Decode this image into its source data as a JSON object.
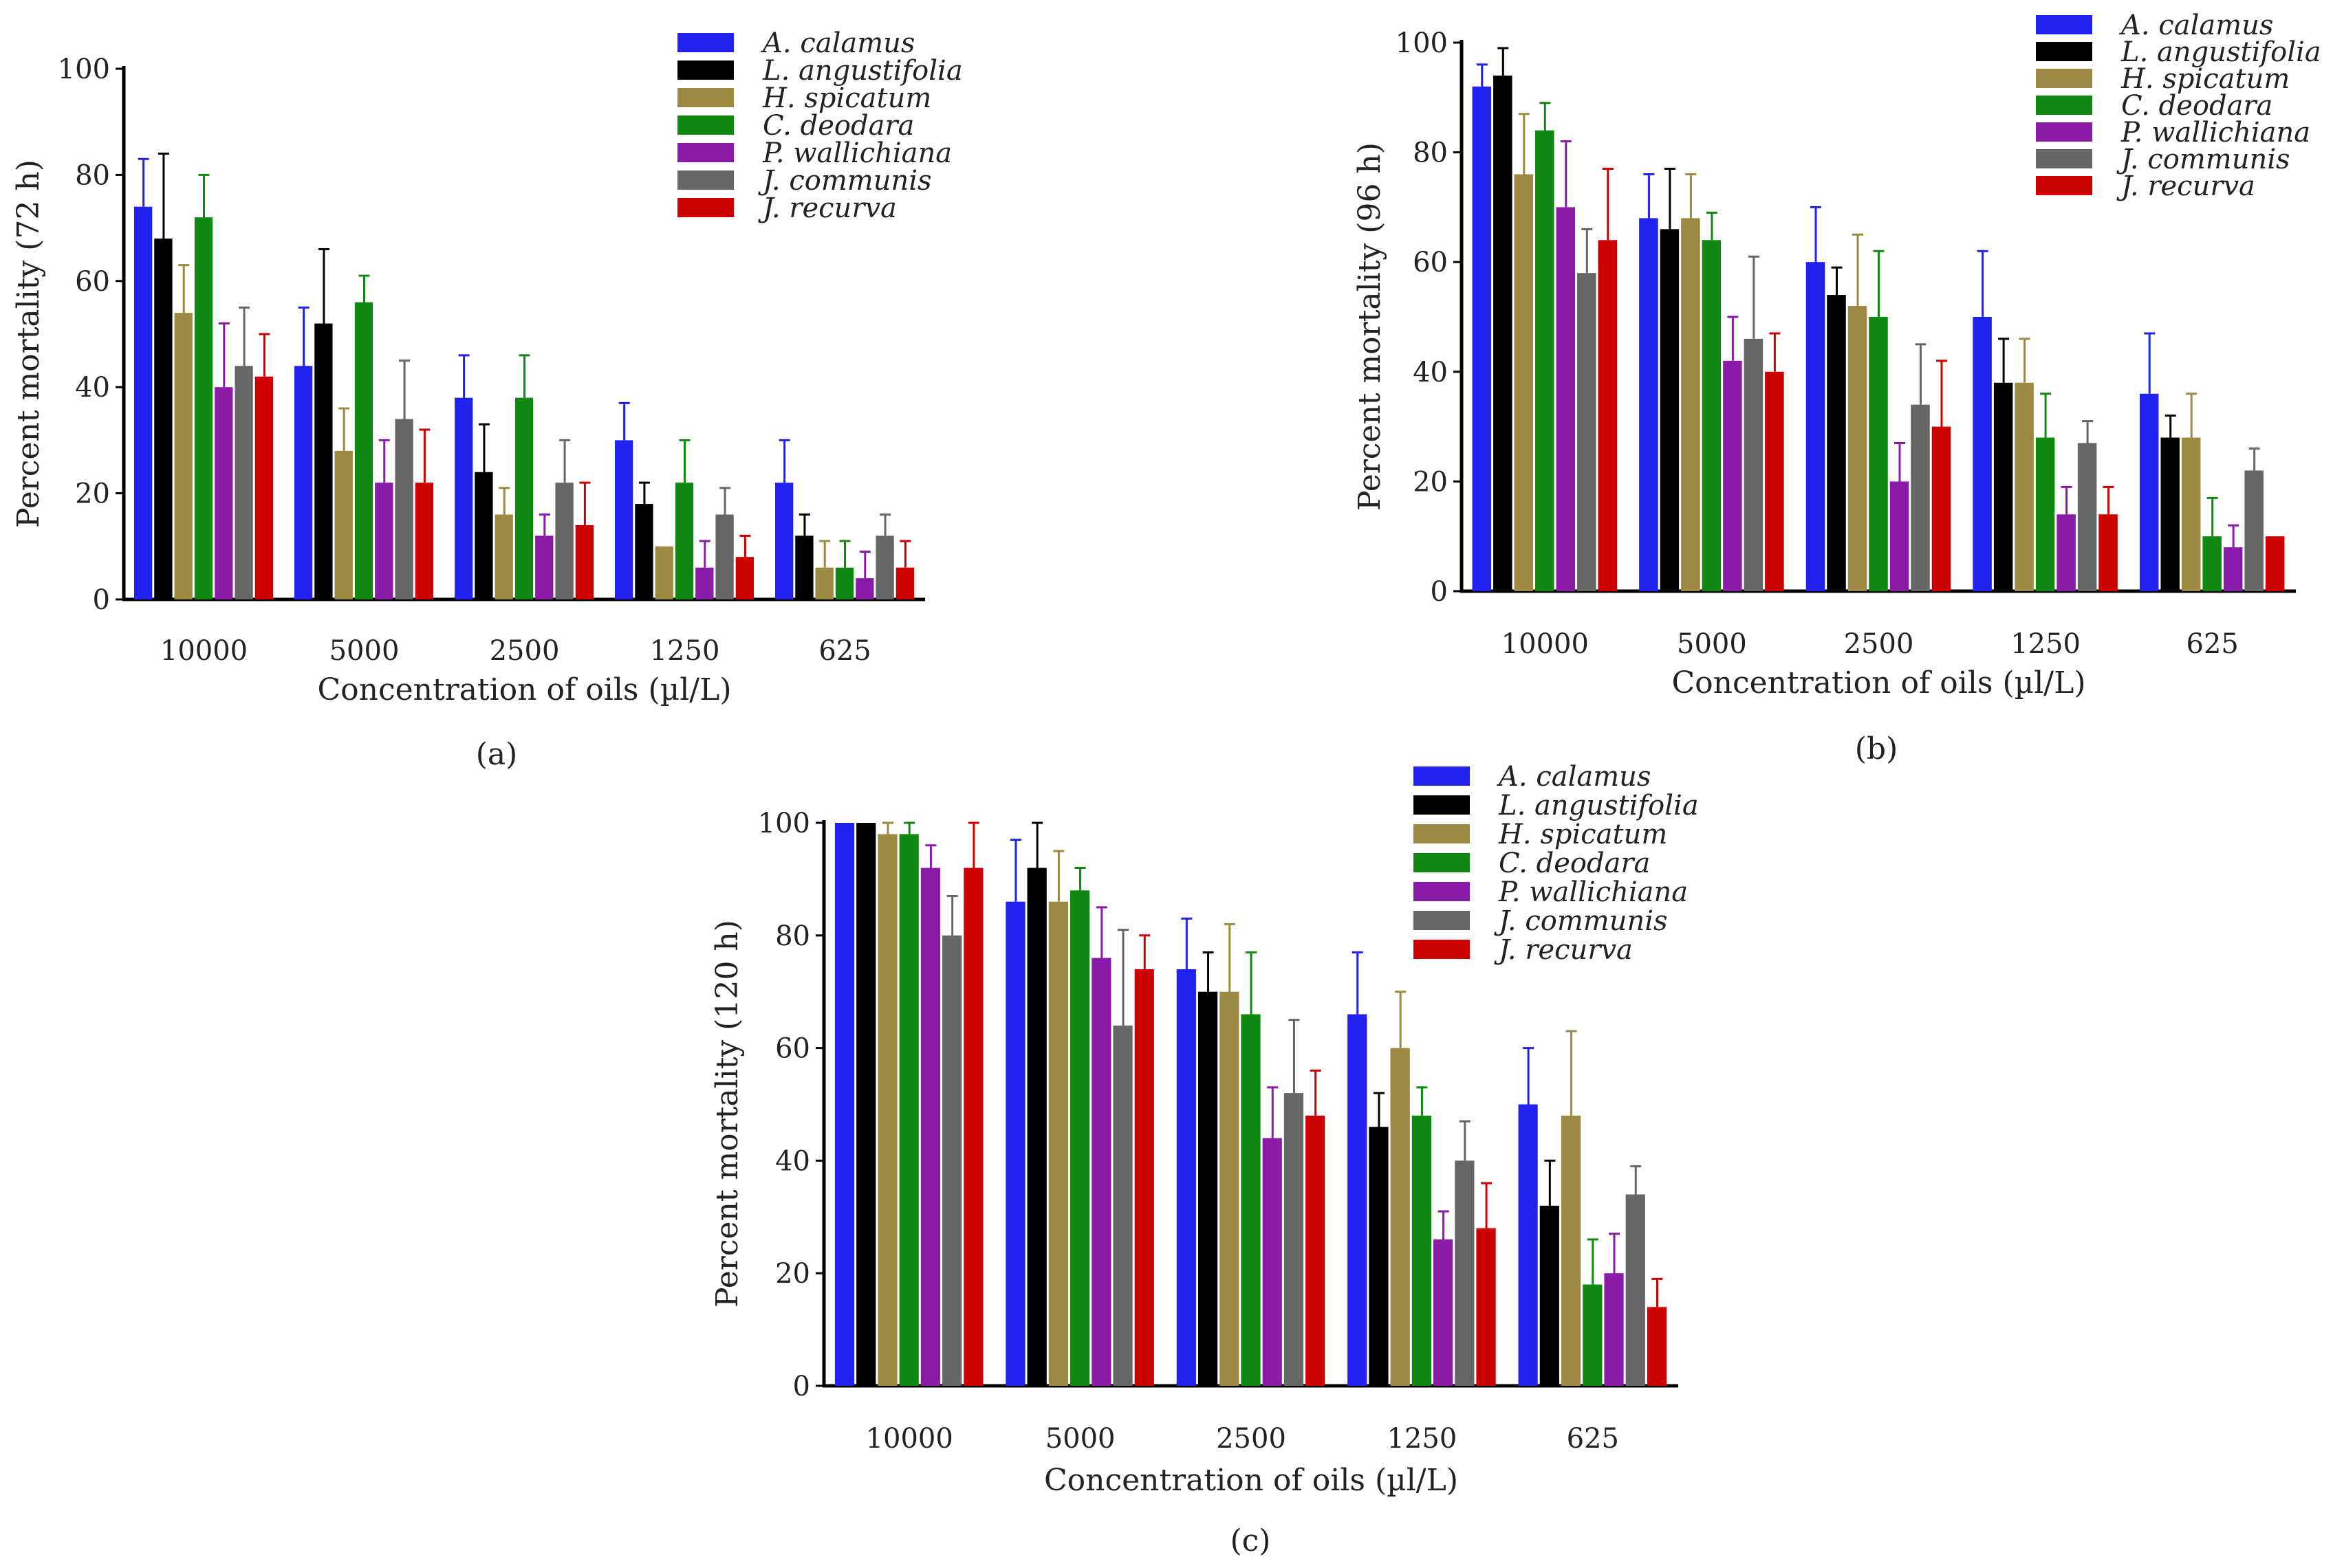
{
  "chart_data": [
    {
      "type": "bar",
      "panel_label": "(a)",
      "xlabel": "Concentration of oils (µl/L)",
      "ylabel": "Percent mortality (72 h)",
      "ylim": [
        0,
        100
      ],
      "yticks": [
        "0",
        "20",
        "40",
        "60",
        "80",
        "100"
      ],
      "categories": [
        "10000",
        "5000",
        "2500",
        "1250",
        "625"
      ],
      "legend_position": "top-right",
      "series": [
        {
          "name": "A. calamus",
          "color": "#2222ee",
          "values": [
            74,
            44,
            38,
            30,
            22
          ],
          "errors": [
            9,
            11,
            8,
            7,
            8
          ]
        },
        {
          "name": "L. angustifolia",
          "color": "#000000",
          "values": [
            68,
            52,
            24,
            18,
            12
          ],
          "errors": [
            16,
            14,
            9,
            4,
            4
          ]
        },
        {
          "name": "H. spicatum",
          "color": "#9c8a42",
          "values": [
            54,
            28,
            16,
            10,
            6
          ],
          "errors": [
            9,
            8,
            5,
            0,
            5
          ]
        },
        {
          "name": "C. deodara",
          "color": "#118811",
          "values": [
            72,
            56,
            38,
            22,
            6
          ],
          "errors": [
            8,
            5,
            8,
            8,
            5
          ]
        },
        {
          "name": "P. wallichiana",
          "color": "#8a1aa8",
          "values": [
            40,
            22,
            12,
            6,
            4
          ],
          "errors": [
            12,
            8,
            4,
            5,
            5
          ]
        },
        {
          "name": "J. communis",
          "color": "#666666",
          "values": [
            44,
            34,
            22,
            16,
            12
          ],
          "errors": [
            11,
            11,
            8,
            5,
            4
          ]
        },
        {
          "name": "J. recurva",
          "color": "#cc0000",
          "values": [
            42,
            22,
            14,
            8,
            6
          ],
          "errors": [
            8,
            10,
            8,
            4,
            5
          ]
        }
      ]
    },
    {
      "type": "bar",
      "panel_label": "(b)",
      "xlabel": "Concentration of oils (µl/L)",
      "ylabel": "Percent mortality (96 h)",
      "ylim": [
        0,
        100
      ],
      "yticks": [
        "0",
        "20",
        "40",
        "60",
        "80",
        "100"
      ],
      "categories": [
        "10000",
        "5000",
        "2500",
        "1250",
        "625"
      ],
      "legend_position": "top-right",
      "series": [
        {
          "name": "A. calamus",
          "color": "#2222ee",
          "values": [
            92,
            68,
            60,
            50,
            36
          ],
          "errors": [
            4,
            8,
            10,
            12,
            11
          ]
        },
        {
          "name": "L. angustifolia",
          "color": "#000000",
          "values": [
            94,
            66,
            54,
            38,
            28
          ],
          "errors": [
            5,
            11,
            5,
            8,
            4
          ]
        },
        {
          "name": "H. spicatum",
          "color": "#9c8a42",
          "values": [
            76,
            68,
            52,
            38,
            28
          ],
          "errors": [
            11,
            8,
            13,
            8,
            8
          ]
        },
        {
          "name": "C. deodara",
          "color": "#118811",
          "values": [
            84,
            64,
            50,
            28,
            10
          ],
          "errors": [
            5,
            5,
            12,
            8,
            7
          ]
        },
        {
          "name": "P. wallichiana",
          "color": "#8a1aa8",
          "values": [
            70,
            42,
            20,
            14,
            8
          ],
          "errors": [
            12,
            8,
            7,
            5,
            4
          ]
        },
        {
          "name": "J. communis",
          "color": "#666666",
          "values": [
            58,
            46,
            34,
            27,
            22
          ],
          "errors": [
            8,
            15,
            11,
            4,
            4
          ]
        },
        {
          "name": "J. recurva",
          "color": "#cc0000",
          "values": [
            64,
            40,
            30,
            14,
            10
          ],
          "errors": [
            13,
            7,
            12,
            5,
            0
          ]
        }
      ]
    },
    {
      "type": "bar",
      "panel_label": "(c)",
      "xlabel": "Concentration of oils (µl/L)",
      "ylabel": "Percent mortality (120 h)",
      "ylim": [
        0,
        100
      ],
      "yticks": [
        "0",
        "20",
        "40",
        "60",
        "80",
        "100"
      ],
      "categories": [
        "10000",
        "5000",
        "2500",
        "1250",
        "625"
      ],
      "legend_position": "top-right",
      "series": [
        {
          "name": "A. calamus",
          "color": "#2222ee",
          "values": [
            100,
            86,
            74,
            66,
            50
          ],
          "errors": [
            0,
            11,
            9,
            11,
            10
          ]
        },
        {
          "name": "L. angustifolia",
          "color": "#000000",
          "values": [
            100,
            92,
            70,
            46,
            32
          ],
          "errors": [
            0,
            8,
            7,
            6,
            8
          ]
        },
        {
          "name": "H. spicatum",
          "color": "#9c8a42",
          "values": [
            98,
            86,
            70,
            60,
            48
          ],
          "errors": [
            2,
            9,
            12,
            10,
            15
          ]
        },
        {
          "name": "C. deodara",
          "color": "#118811",
          "values": [
            98,
            88,
            66,
            48,
            18
          ],
          "errors": [
            2,
            4,
            11,
            5,
            8
          ]
        },
        {
          "name": "P. wallichiana",
          "color": "#8a1aa8",
          "values": [
            92,
            76,
            44,
            26,
            20
          ],
          "errors": [
            4,
            9,
            9,
            5,
            7
          ]
        },
        {
          "name": "J. communis",
          "color": "#666666",
          "values": [
            80,
            64,
            52,
            40,
            34
          ],
          "errors": [
            7,
            17,
            13,
            7,
            5
          ]
        },
        {
          "name": "J. recurva",
          "color": "#cc0000",
          "values": [
            92,
            74,
            48,
            28,
            14
          ],
          "errors": [
            8,
            6,
            8,
            8,
            5
          ]
        }
      ]
    }
  ]
}
